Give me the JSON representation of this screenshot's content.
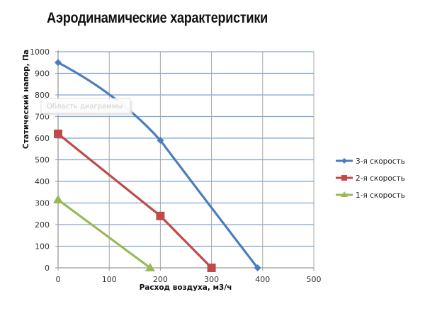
{
  "title": "Аэродинамические характеристики",
  "tooltip": "Область диаграммы",
  "chart_data": {
    "type": "line",
    "title": "Аэродинамические характеристики",
    "xlabel": "Расход воздуха, м3/ч",
    "ylabel": "Статический напор, Па",
    "xlim": [
      0,
      500
    ],
    "ylim": [
      0,
      1000
    ],
    "x_ticks": [
      0,
      100,
      200,
      300,
      400,
      500
    ],
    "y_ticks": [
      0,
      100,
      200,
      300,
      400,
      500,
      600,
      700,
      800,
      900,
      1000
    ],
    "grid": true,
    "legend_position": "right",
    "series": [
      {
        "name": "3-я скорость",
        "color": "#4a7ebb",
        "marker": "diamond",
        "x": [
          0,
          200,
          390
        ],
        "y": [
          950,
          590,
          0
        ]
      },
      {
        "name": "2-я скорость",
        "color": "#be4b48",
        "marker": "square",
        "x": [
          0,
          200,
          300
        ],
        "y": [
          620,
          240,
          0
        ]
      },
      {
        "name": "1-я скорость",
        "color": "#98b954",
        "marker": "triangle",
        "x": [
          0,
          180
        ],
        "y": [
          315,
          0
        ]
      }
    ]
  }
}
